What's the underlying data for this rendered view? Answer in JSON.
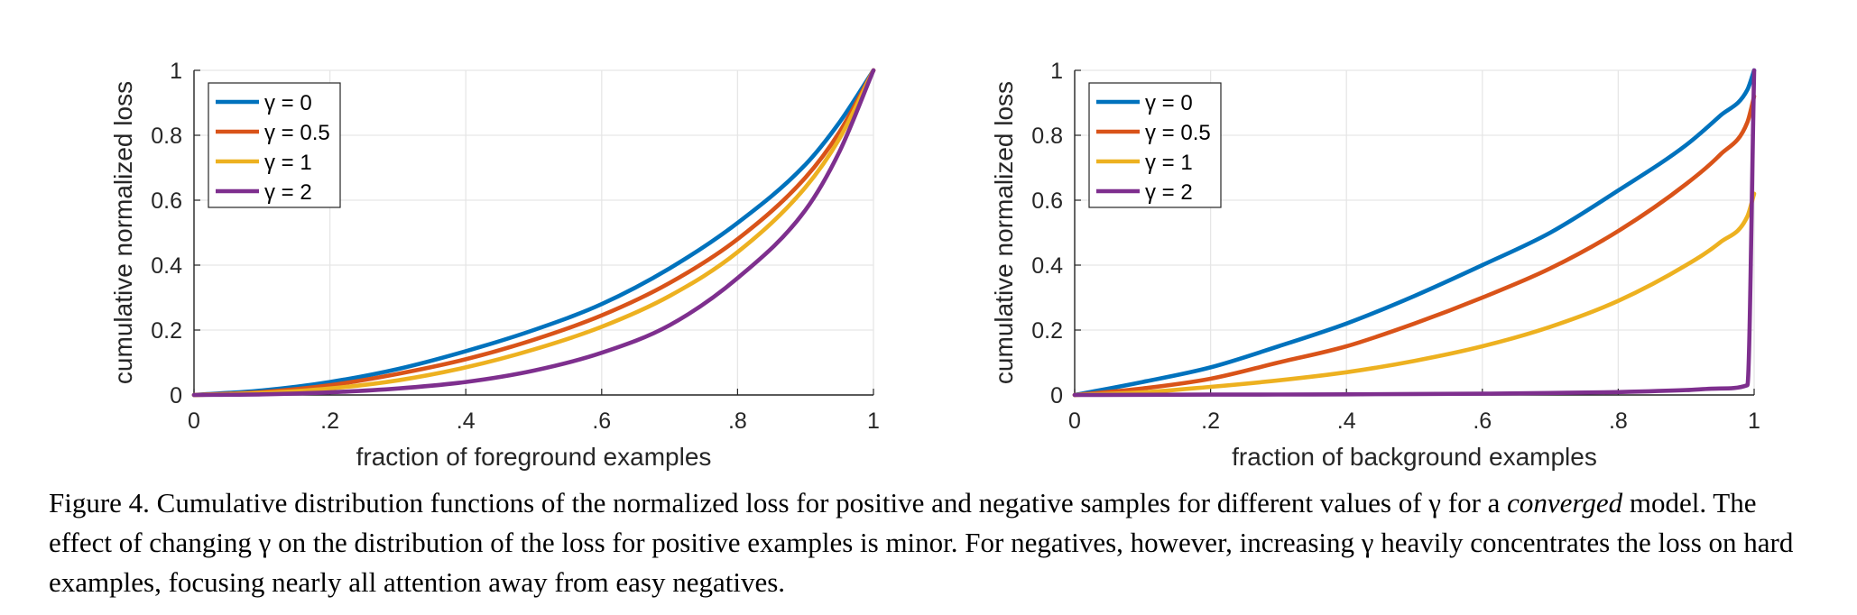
{
  "chart_data": [
    {
      "type": "line",
      "xlabel": "fraction of foreground examples",
      "ylabel": "cumulative normalized loss",
      "xlim": [
        0,
        1
      ],
      "ylim": [
        0,
        1
      ],
      "xticks": [
        "0",
        ".2",
        ".4",
        ".6",
        ".8",
        "1"
      ],
      "yticks": [
        "0",
        "0.2",
        "0.4",
        "0.6",
        "0.8",
        "1"
      ],
      "grid": true,
      "legend_position": "top-left",
      "x": [
        0,
        0.1,
        0.2,
        0.3,
        0.4,
        0.5,
        0.6,
        0.7,
        0.8,
        0.9,
        0.95,
        1
      ],
      "series": [
        {
          "name": "γ = 0",
          "color": "#0072BD",
          "values": [
            0,
            0.014,
            0.04,
            0.08,
            0.135,
            0.2,
            0.28,
            0.39,
            0.53,
            0.71,
            0.84,
            1
          ]
        },
        {
          "name": "γ = 0.5",
          "color": "#D95319",
          "values": [
            0,
            0.009,
            0.03,
            0.065,
            0.11,
            0.17,
            0.245,
            0.345,
            0.48,
            0.67,
            0.81,
            1
          ]
        },
        {
          "name": "γ = 1",
          "color": "#EDB120",
          "values": [
            0,
            0.006,
            0.02,
            0.045,
            0.085,
            0.14,
            0.21,
            0.305,
            0.44,
            0.64,
            0.79,
            1
          ]
        },
        {
          "name": "γ = 2",
          "color": "#7E2F8E",
          "values": [
            0,
            0.002,
            0.008,
            0.02,
            0.04,
            0.075,
            0.13,
            0.215,
            0.36,
            0.57,
            0.75,
            1
          ]
        }
      ]
    },
    {
      "type": "line",
      "xlabel": "fraction of background examples",
      "ylabel": "cumulative normalized loss",
      "xlim": [
        0,
        1
      ],
      "ylim": [
        0,
        1
      ],
      "xticks": [
        "0",
        ".2",
        ".4",
        ".6",
        ".8",
        "1"
      ],
      "yticks": [
        "0",
        "0.2",
        "0.4",
        "0.6",
        "0.8",
        "1"
      ],
      "grid": true,
      "legend_position": "top-left",
      "x": [
        0,
        0.1,
        0.2,
        0.3,
        0.4,
        0.5,
        0.6,
        0.7,
        0.8,
        0.9,
        0.95,
        0.99,
        1
      ],
      "series": [
        {
          "name": "γ = 0",
          "color": "#0072BD",
          "values": [
            0,
            0.04,
            0.085,
            0.15,
            0.22,
            0.305,
            0.4,
            0.5,
            0.63,
            0.77,
            0.86,
            0.94,
            1
          ]
        },
        {
          "name": "γ = 0.5",
          "color": "#D95319",
          "values": [
            0,
            0.02,
            0.05,
            0.1,
            0.15,
            0.22,
            0.3,
            0.39,
            0.505,
            0.65,
            0.74,
            0.84,
            0.92
          ]
        },
        {
          "name": "γ = 1",
          "color": "#EDB120",
          "values": [
            0,
            0.008,
            0.025,
            0.045,
            0.07,
            0.105,
            0.15,
            0.21,
            0.29,
            0.4,
            0.47,
            0.55,
            0.62
          ]
        },
        {
          "name": "γ = 2",
          "color": "#7E2F8E",
          "values": [
            0,
            0.0005,
            0.001,
            0.0015,
            0.002,
            0.003,
            0.004,
            0.006,
            0.009,
            0.015,
            0.02,
            0.03,
            1
          ]
        }
      ]
    }
  ],
  "caption": {
    "part1": "Figure 4. Cumulative distribution functions of the normalized loss for positive and negative samples for different values of γ for a ",
    "emphasis": "converged",
    "part2": " model. The effect of changing γ on the distribution of the loss for positive examples is minor. For negatives, however, increasing γ heavily concentrates the loss on hard examples, focusing nearly all attention away from easy negatives."
  }
}
